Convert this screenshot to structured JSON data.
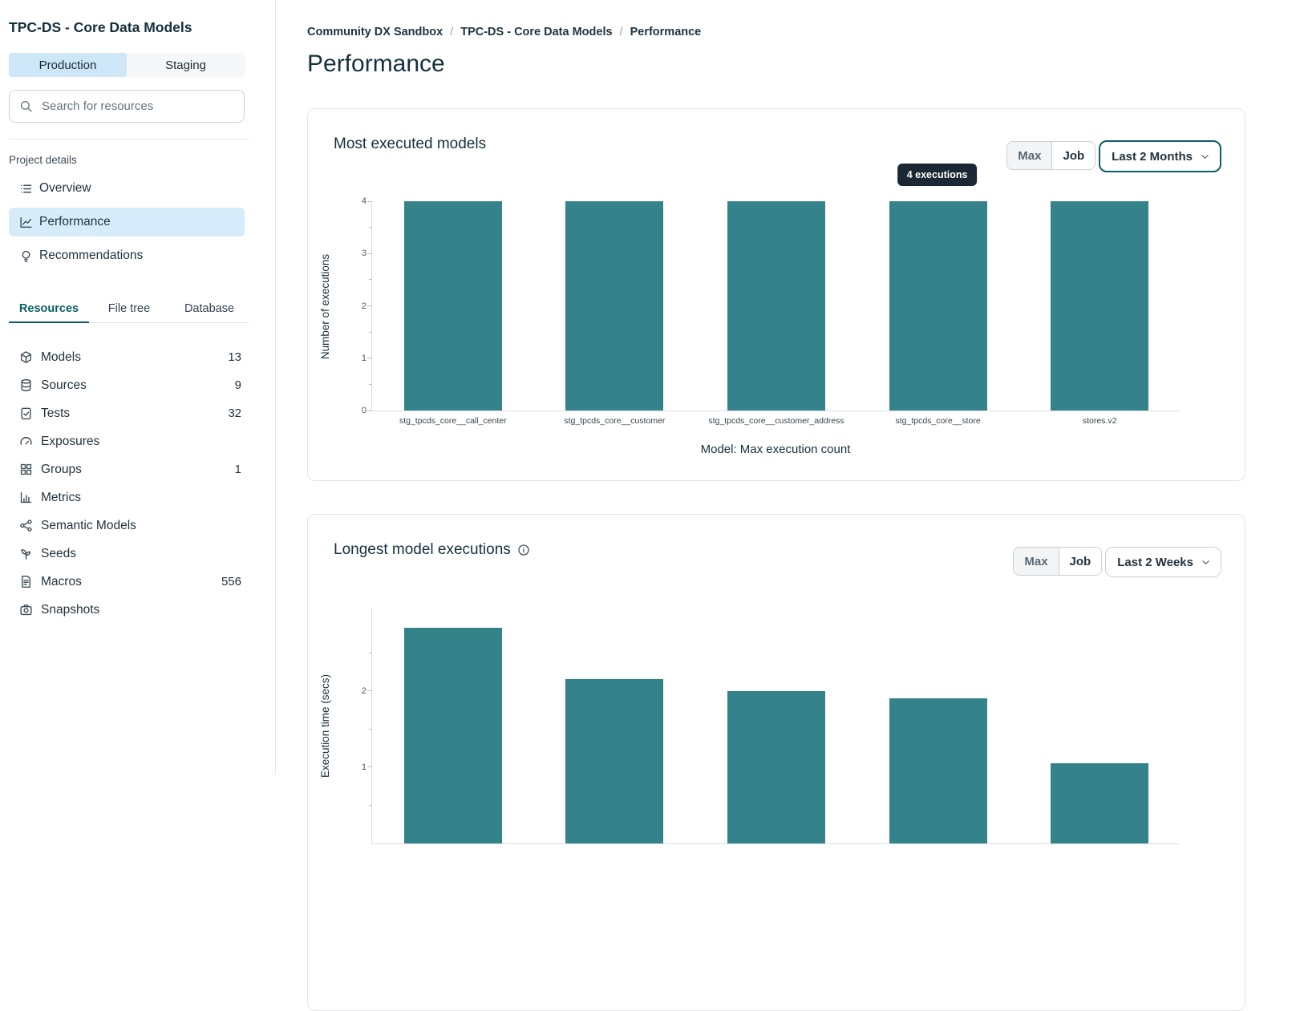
{
  "sidebar": {
    "title": "TPC-DS - Core Data Models",
    "env_tabs": [
      {
        "label": "Production",
        "active": true
      },
      {
        "label": "Staging",
        "active": false
      }
    ],
    "search_placeholder": "Search for resources",
    "project_details_label": "Project details",
    "nav": [
      {
        "label": "Overview",
        "icon": "list-icon",
        "active": false
      },
      {
        "label": "Performance",
        "icon": "chart-line-icon",
        "active": true
      },
      {
        "label": "Recommendations",
        "icon": "lightbulb-icon",
        "active": false
      }
    ],
    "resource_tabs": [
      {
        "label": "Resources",
        "active": true
      },
      {
        "label": "File tree",
        "active": false
      },
      {
        "label": "Database",
        "active": false
      }
    ],
    "resources": [
      {
        "label": "Models",
        "count": "13",
        "icon": "cube-icon"
      },
      {
        "label": "Sources",
        "count": "9",
        "icon": "database-icon"
      },
      {
        "label": "Tests",
        "count": "32",
        "icon": "clipboard-icon"
      },
      {
        "label": "Exposures",
        "count": "",
        "icon": "gauge-icon"
      },
      {
        "label": "Groups",
        "count": "1",
        "icon": "grid-icon"
      },
      {
        "label": "Metrics",
        "count": "",
        "icon": "bar-chart-icon"
      },
      {
        "label": "Semantic Models",
        "count": "",
        "icon": "share-nodes-icon"
      },
      {
        "label": "Seeds",
        "count": "",
        "icon": "seedling-icon"
      },
      {
        "label": "Macros",
        "count": "556",
        "icon": "file-icon"
      },
      {
        "label": "Snapshots",
        "count": "",
        "icon": "camera-icon"
      }
    ]
  },
  "breadcrumb": {
    "items": [
      "Community DX Sandbox",
      "TPC-DS - Core Data Models",
      "Performance"
    ],
    "separator": "/"
  },
  "page_title": "Performance",
  "colors": {
    "accent_teal": "#0c5f66",
    "bar_teal": "#35838a",
    "active_blue": "#cde7f8",
    "tooltip_bg": "#1b2733"
  },
  "chart_data": [
    {
      "type": "bar",
      "title": "Most executed models",
      "categories": [
        "stg_tpcds_core__call_center",
        "stg_tpcds_core__customer",
        "stg_tpcds_core__customer_address",
        "stg_tpcds_core__store",
        "stores.v2"
      ],
      "values": [
        4,
        4,
        4,
        4,
        4
      ],
      "ylabel": "Number of executions",
      "xlabel": "Model: Max execution count",
      "ylim": [
        0,
        4
      ],
      "yticks": [
        0,
        1,
        2,
        3,
        4
      ],
      "yticks_minor": [
        0.5,
        1.5,
        2.5,
        3.5
      ],
      "grid": false,
      "legend": false,
      "controls": {
        "toggle": [
          "Max",
          "Job"
        ],
        "selected_range": "Last 2 Months"
      },
      "tooltip": {
        "text": "4 executions",
        "bar_index": 3
      }
    },
    {
      "type": "bar",
      "title": "Longest model executions",
      "categories": [
        "",
        "",
        "",
        "",
        ""
      ],
      "values": [
        2.83,
        2.15,
        2.0,
        1.9,
        1.05
      ],
      "ylabel": "Execution time (secs)",
      "xlabel": "",
      "ylim": [
        0,
        3.1
      ],
      "yticks": [
        1,
        2
      ],
      "yticks_minor": [
        0.5,
        1.5,
        2.5
      ],
      "grid": false,
      "legend": false,
      "controls": {
        "toggle": [
          "Max",
          "Job"
        ],
        "selected_range": "Last 2 Weeks"
      }
    }
  ]
}
